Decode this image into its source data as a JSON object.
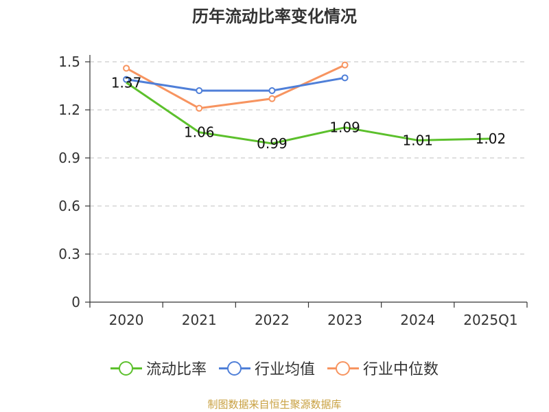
{
  "chart_data": {
    "type": "line",
    "title": "历年流动比率变化情况",
    "categories": [
      "2020",
      "2021",
      "2022",
      "2023",
      "2024",
      "2025Q1"
    ],
    "ylim": [
      0,
      1.5
    ],
    "yticks": [
      0,
      0.3,
      0.6,
      0.9,
      1.2,
      1.5
    ],
    "ytick_labels": [
      "0",
      "0.3",
      "0.6",
      "0.9",
      "1.2",
      "1.5"
    ],
    "grid": true,
    "legend_position": "bottom",
    "series": [
      {
        "name": "流动比率",
        "color": "#5cc02c",
        "values": [
          1.37,
          1.06,
          0.99,
          1.09,
          1.01,
          1.02
        ],
        "labels": [
          "1.37",
          "1.06",
          "0.99",
          "1.09",
          "1.01",
          "1.02"
        ],
        "show_markers": false,
        "show_labels": true
      },
      {
        "name": "行业均值",
        "color": "#4f7fd8",
        "values": [
          1.39,
          1.32,
          1.32,
          1.4,
          null,
          null
        ],
        "show_markers": true,
        "show_labels": false
      },
      {
        "name": "行业中位数",
        "color": "#f79460",
        "values": [
          1.46,
          1.21,
          1.27,
          1.48,
          null,
          null
        ],
        "show_markers": true,
        "show_labels": false
      }
    ],
    "source": "制图数据来自恒生聚源数据库"
  }
}
